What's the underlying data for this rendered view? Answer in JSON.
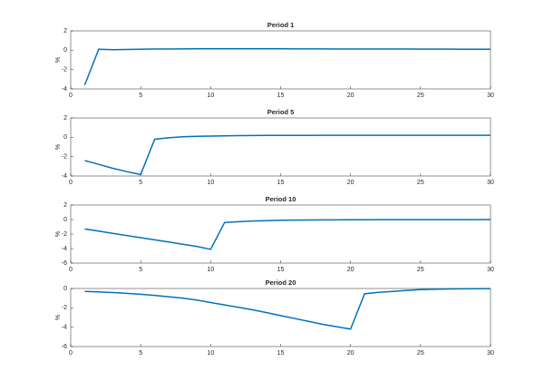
{
  "chart_data": [
    {
      "type": "line",
      "title": "Period 1",
      "ylabel": "%",
      "color": "#0072bd",
      "x": [
        1,
        2,
        3,
        4,
        5,
        6,
        7,
        8,
        9,
        10,
        11,
        12,
        13,
        14,
        15,
        16,
        17,
        18,
        19,
        20,
        21,
        22,
        23,
        24,
        25,
        26,
        27,
        28,
        29,
        30
      ],
      "values": [
        -3.6,
        0.1,
        0.05,
        0.08,
        0.1,
        0.12,
        0.13,
        0.14,
        0.15,
        0.15,
        0.15,
        0.15,
        0.15,
        0.15,
        0.15,
        0.14,
        0.14,
        0.14,
        0.13,
        0.13,
        0.13,
        0.12,
        0.12,
        0.12,
        0.11,
        0.11,
        0.11,
        0.1,
        0.1,
        0.1
      ],
      "xlim": [
        0,
        30
      ],
      "xticks": [
        0,
        5,
        10,
        15,
        20,
        25,
        30
      ],
      "ylim": [
        -4,
        2
      ],
      "yticks": [
        -4,
        -2,
        0,
        2
      ]
    },
    {
      "type": "line",
      "title": "Period 5",
      "ylabel": "%",
      "color": "#0072bd",
      "x": [
        1,
        2,
        3,
        4,
        5,
        6,
        7,
        8,
        9,
        10,
        11,
        12,
        13,
        14,
        15,
        16,
        17,
        18,
        19,
        20,
        21,
        22,
        23,
        24,
        25,
        26,
        27,
        28,
        29,
        30
      ],
      "values": [
        -2.4,
        -2.8,
        -3.2,
        -3.55,
        -3.85,
        -0.2,
        -0.05,
        0.05,
        0.1,
        0.13,
        0.15,
        0.17,
        0.18,
        0.19,
        0.2,
        0.2,
        0.2,
        0.21,
        0.21,
        0.21,
        0.21,
        0.21,
        0.21,
        0.21,
        0.21,
        0.21,
        0.21,
        0.21,
        0.21,
        0.21
      ],
      "xlim": [
        0,
        30
      ],
      "xticks": [
        0,
        5,
        10,
        15,
        20,
        25,
        30
      ],
      "ylim": [
        -4,
        2
      ],
      "yticks": [
        -4,
        -2,
        0,
        2
      ]
    },
    {
      "type": "line",
      "title": "Period 10",
      "ylabel": "%",
      "color": "#0072bd",
      "x": [
        1,
        2,
        3,
        4,
        5,
        6,
        7,
        8,
        9,
        10,
        11,
        12,
        13,
        14,
        15,
        16,
        17,
        18,
        19,
        20,
        21,
        22,
        23,
        24,
        25,
        26,
        27,
        28,
        29,
        30
      ],
      "values": [
        -1.3,
        -1.6,
        -1.9,
        -2.2,
        -2.5,
        -2.8,
        -3.1,
        -3.4,
        -3.7,
        -4.1,
        -0.4,
        -0.3,
        -0.2,
        -0.15,
        -0.1,
        -0.08,
        -0.06,
        -0.05,
        -0.04,
        -0.03,
        -0.03,
        -0.02,
        -0.02,
        -0.02,
        -0.01,
        -0.01,
        -0.01,
        -0.01,
        -0.01,
        0
      ],
      "xlim": [
        0,
        30
      ],
      "xticks": [
        0,
        5,
        10,
        15,
        20,
        25,
        30
      ],
      "ylim": [
        -6,
        2
      ],
      "yticks": [
        -6,
        -4,
        -2,
        0,
        2
      ]
    },
    {
      "type": "line",
      "title": "Period 20",
      "ylabel": "%",
      "color": "#0072bd",
      "x": [
        1,
        2,
        3,
        4,
        5,
        6,
        7,
        8,
        9,
        10,
        11,
        12,
        13,
        14,
        15,
        16,
        17,
        18,
        19,
        20,
        21,
        22,
        23,
        24,
        25,
        26,
        27,
        28,
        29,
        30
      ],
      "values": [
        -0.3,
        -0.35,
        -0.42,
        -0.5,
        -0.6,
        -0.72,
        -0.85,
        -1.0,
        -1.2,
        -1.45,
        -1.7,
        -1.95,
        -2.2,
        -2.5,
        -2.8,
        -3.1,
        -3.4,
        -3.7,
        -3.95,
        -4.2,
        -0.55,
        -0.4,
        -0.3,
        -0.2,
        -0.12,
        -0.08,
        -0.05,
        -0.03,
        -0.02,
        -0.01
      ],
      "xlim": [
        0,
        30
      ],
      "xticks": [
        0,
        5,
        10,
        15,
        20,
        25,
        30
      ],
      "ylim": [
        -6,
        0
      ],
      "yticks": [
        -6,
        -4,
        -2,
        0
      ]
    }
  ]
}
